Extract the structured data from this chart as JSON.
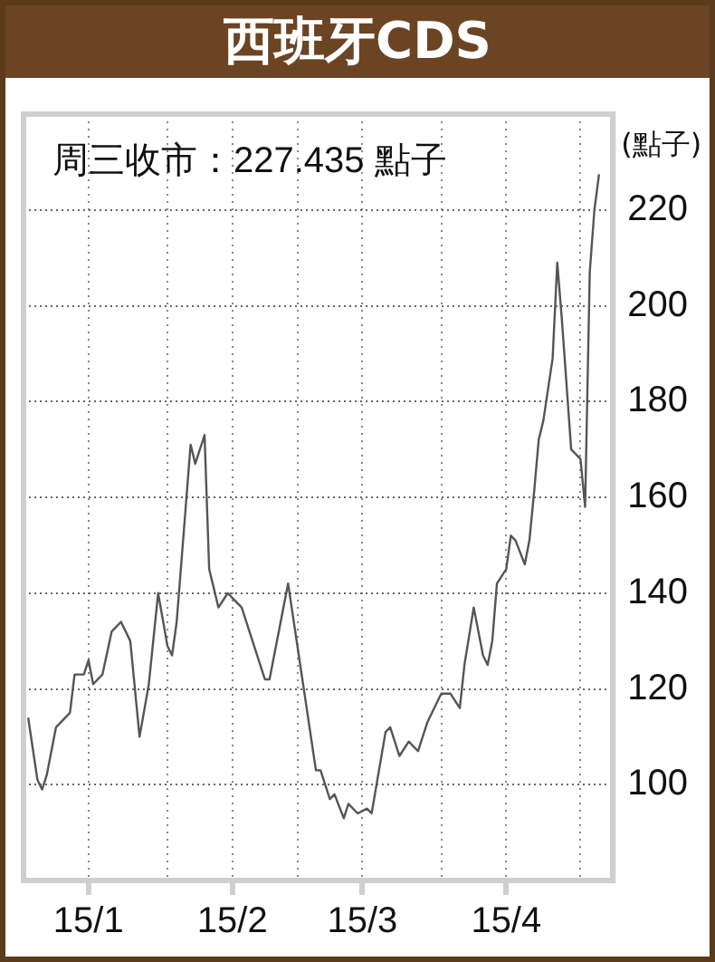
{
  "chart_data": {
    "type": "line",
    "title": "西班牙CDS",
    "ylabel": "(點子)",
    "annotations": [
      "周三收市：227.435 點子"
    ],
    "x": [
      "--01-02",
      "--01-04",
      "--01-05",
      "--01-06",
      "--01-08",
      "--01-11",
      "--01-12",
      "--01-14",
      "--01-15",
      "--01-16",
      "--01-18",
      "--01-20",
      "--01-22",
      "--01-24",
      "--01-26",
      "--01-28",
      "--01-30",
      "--02-01",
      "--02-02",
      "--02-03",
      "--02-06",
      "--02-07",
      "--02-09",
      "--02-10",
      "--02-12",
      "--02-14",
      "--02-17",
      "--02-20",
      "--02-22",
      "--02-23",
      "--02-27",
      "--03-05",
      "--03-06",
      "--03-08",
      "--03-09",
      "--03-11",
      "--03-12",
      "--03-14",
      "--03-16",
      "--03-17",
      "--03-20",
      "--03-21",
      "--03-23",
      "--03-25",
      "--03-27",
      "--03-29",
      "--04-01",
      "--04-03",
      "--04-05",
      "--04-06",
      "--04-08",
      "--04-10",
      "--04-11",
      "--04-12",
      "--04-13",
      "--04-15",
      "--04-16",
      "--04-17",
      "--04-19",
      "--04-20",
      "--04-21",
      "--04-22",
      "--04-23",
      "--04-25",
      "--04-26",
      "--04-27",
      "--04-29",
      "--05-01",
      "--05-02",
      "--05-03",
      "--05-04",
      "--05-05"
    ],
    "series": [
      {
        "color": "#555555",
        "values": [
          114,
          101,
          99,
          102,
          112,
          115,
          123,
          123,
          126,
          121,
          123,
          132,
          134,
          130,
          110,
          121,
          140,
          129,
          127,
          134,
          171,
          167,
          173,
          145,
          137,
          140,
          137,
          128,
          122,
          122,
          142,
          103,
          103,
          97,
          98,
          93,
          96,
          94,
          95,
          94,
          111,
          112,
          106,
          109,
          107,
          113,
          119,
          119,
          116,
          125,
          137,
          127,
          125,
          130,
          142,
          145,
          152,
          151,
          146,
          151,
          161,
          172,
          176,
          189,
          209,
          197,
          170,
          168,
          158,
          207,
          220,
          227.435
        ]
      }
    ],
    "xlim": [
      "--01-01",
      "--05-08"
    ],
    "xticks": [
      {
        "value": "--01-15",
        "label": "15/1"
      },
      {
        "value": "--02-01",
        "label": null
      },
      {
        "value": "--02-15",
        "label": "15/2"
      },
      {
        "value": "--03-01",
        "label": null
      },
      {
        "value": "--03-15",
        "label": "15/3"
      },
      {
        "value": "--04-01",
        "label": null
      },
      {
        "value": "--04-15",
        "label": "15/4"
      },
      {
        "value": "--05-01",
        "label": null
      }
    ],
    "ylim": [
      80,
      240
    ],
    "yticks": [
      100,
      120,
      140,
      160,
      180,
      200,
      220
    ],
    "grid": true,
    "legend": false,
    "marker": "none",
    "line_style": "solid"
  }
}
